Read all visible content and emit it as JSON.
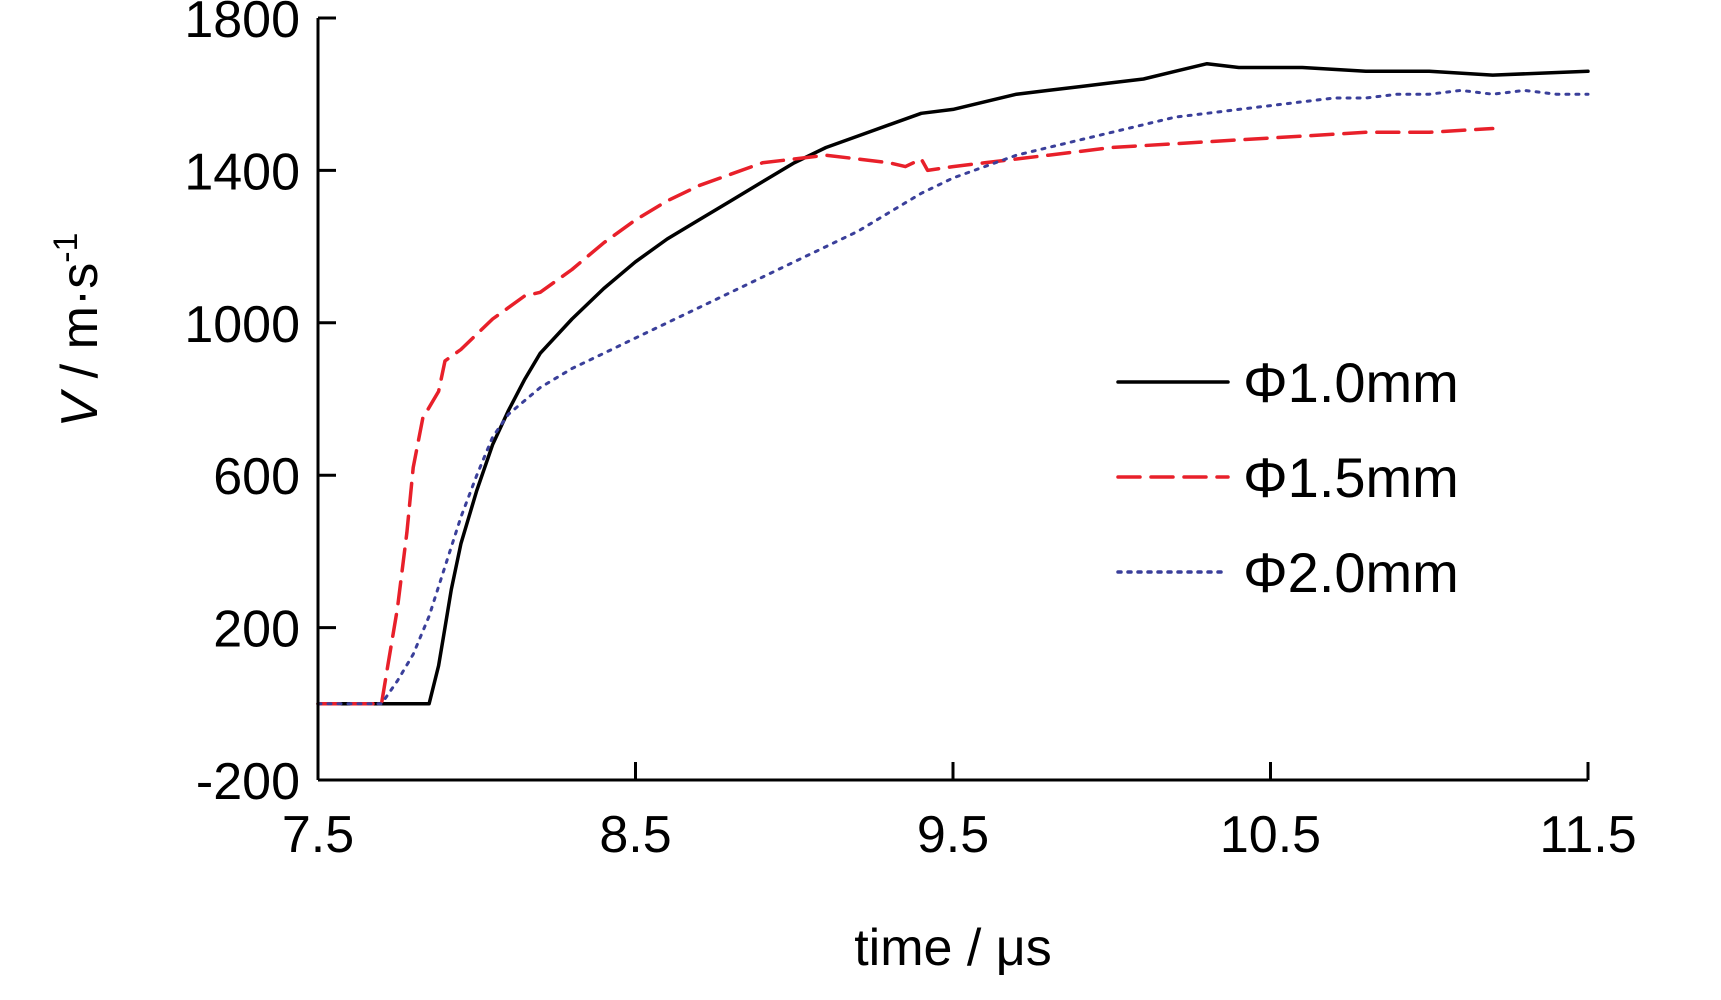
{
  "chart_data": {
    "type": "line",
    "xlabel": "time / μs",
    "ylabel": {
      "symbol": "V",
      "unit": " / m·s",
      "exponent": "-1"
    },
    "xlim": [
      7.5,
      11.5
    ],
    "ylim": [
      -200,
      1800
    ],
    "x_ticks": [
      7.5,
      8.5,
      9.5,
      10.5,
      11.5
    ],
    "x_tick_labels": [
      "7.5",
      "8.5",
      "9.5",
      "10.5",
      "11.5"
    ],
    "y_ticks": [
      -200,
      200,
      600,
      1000,
      1400,
      1800
    ],
    "y_tick_labels": [
      "-200",
      "200",
      "600",
      "1000",
      "1400",
      "1800"
    ],
    "grid": false,
    "legend_position": "right-middle",
    "series": [
      {
        "name": "Φ1.0mm",
        "color": "#000000",
        "style": "solid",
        "x": [
          7.5,
          7.85,
          7.88,
          7.9,
          7.92,
          7.95,
          8.0,
          8.05,
          8.1,
          8.15,
          8.2,
          8.3,
          8.4,
          8.5,
          8.6,
          8.7,
          8.8,
          8.9,
          9.0,
          9.1,
          9.2,
          9.3,
          9.4,
          9.5,
          9.6,
          9.7,
          9.8,
          9.9,
          10.0,
          10.1,
          10.2,
          10.3,
          10.4,
          10.6,
          10.8,
          11.0,
          11.2,
          11.5
        ],
        "y": [
          0,
          0,
          100,
          200,
          300,
          420,
          560,
          680,
          770,
          850,
          920,
          1010,
          1090,
          1160,
          1220,
          1270,
          1320,
          1370,
          1420,
          1460,
          1490,
          1520,
          1550,
          1560,
          1580,
          1600,
          1610,
          1620,
          1630,
          1640,
          1660,
          1680,
          1670,
          1670,
          1660,
          1660,
          1650,
          1660
        ]
      },
      {
        "name": "Φ1.5mm",
        "color": "#e8202a",
        "style": "dashed",
        "x": [
          7.5,
          7.7,
          7.72,
          7.75,
          7.78,
          7.8,
          7.83,
          7.88,
          7.9,
          7.95,
          8.0,
          8.05,
          8.1,
          8.15,
          8.2,
          8.25,
          8.3,
          8.4,
          8.5,
          8.6,
          8.7,
          8.8,
          8.9,
          9.0,
          9.1,
          9.2,
          9.3,
          9.35,
          9.4,
          9.42,
          9.5,
          9.6,
          9.7,
          9.8,
          9.9,
          10.0,
          10.2,
          10.4,
          10.6,
          10.8,
          11.0,
          11.2
        ],
        "y": [
          0,
          0,
          100,
          250,
          450,
          620,
          750,
          820,
          900,
          930,
          970,
          1010,
          1040,
          1070,
          1080,
          1110,
          1140,
          1210,
          1270,
          1320,
          1360,
          1390,
          1420,
          1430,
          1440,
          1430,
          1420,
          1410,
          1430,
          1400,
          1410,
          1420,
          1430,
          1440,
          1450,
          1460,
          1470,
          1480,
          1490,
          1500,
          1500,
          1510
        ]
      },
      {
        "name": "Φ2.0mm",
        "color": "#3a3f9a",
        "style": "dotted",
        "x": [
          7.5,
          7.7,
          7.75,
          7.8,
          7.85,
          7.9,
          7.95,
          8.0,
          8.05,
          8.1,
          8.2,
          8.3,
          8.4,
          8.5,
          8.6,
          8.7,
          8.8,
          8.9,
          9.0,
          9.1,
          9.2,
          9.3,
          9.4,
          9.5,
          9.6,
          9.7,
          9.8,
          9.9,
          10.0,
          10.1,
          10.2,
          10.3,
          10.4,
          10.5,
          10.6,
          10.7,
          10.8,
          10.9,
          11.0,
          11.1,
          11.2,
          11.3,
          11.4,
          11.5
        ],
        "y": [
          0,
          0,
          60,
          130,
          230,
          360,
          490,
          600,
          700,
          760,
          830,
          880,
          920,
          960,
          1000,
          1040,
          1080,
          1120,
          1160,
          1200,
          1240,
          1290,
          1340,
          1380,
          1410,
          1440,
          1460,
          1480,
          1500,
          1520,
          1540,
          1550,
          1560,
          1570,
          1580,
          1590,
          1590,
          1600,
          1600,
          1610,
          1600,
          1610,
          1600,
          1600
        ]
      }
    ]
  }
}
